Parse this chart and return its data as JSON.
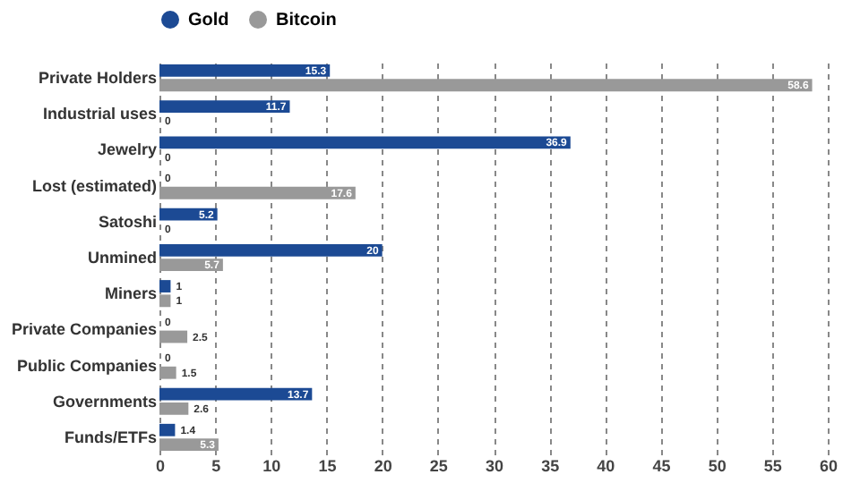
{
  "chart_data": {
    "type": "bar",
    "orientation": "horizontal",
    "categories": [
      "Private Holders",
      "Industrial uses",
      "Jewelry",
      "Lost (estimated)",
      "Satoshi",
      "Unmined",
      "Miners",
      "Private Companies",
      "Public Companies",
      "Governments",
      "Funds/ETFs"
    ],
    "series": [
      {
        "name": "Gold",
        "color": "#1c4a94",
        "values": [
          15.3,
          11.7,
          36.9,
          0,
          5.2,
          20,
          1,
          0,
          0,
          13.7,
          1.4
        ]
      },
      {
        "name": "Bitcoin",
        "color": "#999999",
        "values": [
          58.6,
          0,
          0,
          17.6,
          0,
          5.7,
          1,
          2.5,
          1.5,
          2.6,
          5.3
        ]
      }
    ],
    "xlim": [
      0,
      60
    ],
    "xticks": [
      0,
      5,
      10,
      15,
      20,
      25,
      30,
      35,
      40,
      45,
      50,
      55,
      60
    ],
    "grid": "x",
    "legend": "top",
    "data_labels": true
  }
}
